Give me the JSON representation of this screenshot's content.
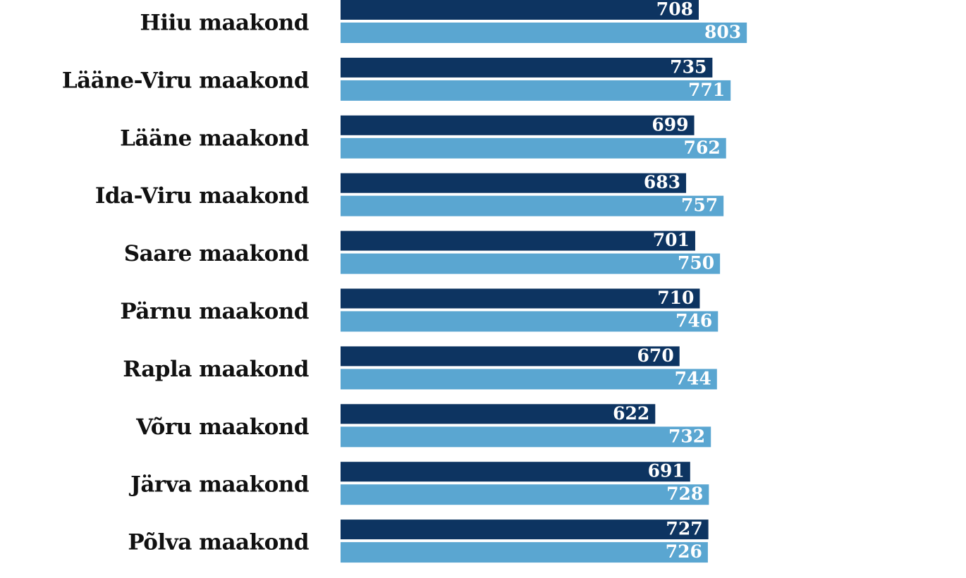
{
  "chart_data": {
    "type": "bar",
    "orientation": "horizontal",
    "categories": [
      "Hiiu maakond",
      "Lääne-Viru maakond",
      "Lääne maakond",
      "Ida-Viru maakond",
      "Saare maakond",
      "Pärnu maakond",
      "Rapla maakond",
      "Võru maakond",
      "Järva maakond",
      "Põlva maakond"
    ],
    "series": [
      {
        "color": "#0d3461",
        "values": [
          708,
          735,
          699,
          683,
          701,
          710,
          670,
          622,
          691,
          727
        ]
      },
      {
        "color": "#5aa6d1",
        "values": [
          803,
          771,
          762,
          757,
          750,
          746,
          744,
          732,
          728,
          726
        ]
      }
    ]
  }
}
